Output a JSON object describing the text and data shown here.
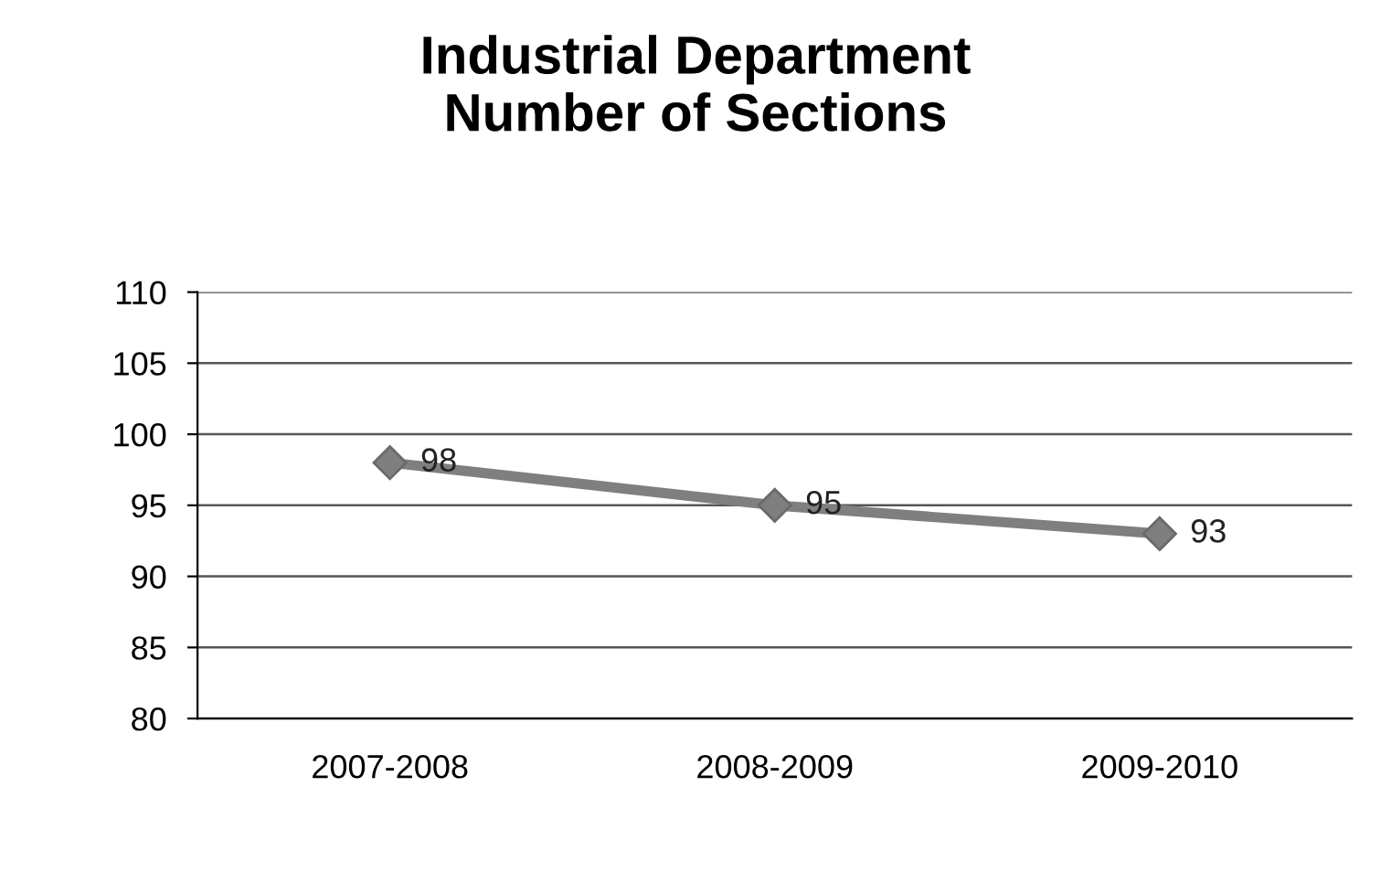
{
  "chart_data": {
    "type": "line",
    "title": "Industrial Department\nNumber of Sections",
    "categories": [
      "2007-2008",
      "2008-2009",
      "2009-2010"
    ],
    "series": [
      {
        "color": "#7f7f7f",
        "values": [
          98,
          95,
          93
        ]
      }
    ],
    "ylim": [
      80,
      110
    ],
    "yticks": [
      80,
      85,
      90,
      95,
      100,
      105,
      110
    ],
    "grid": "y",
    "marker": "diamond",
    "line_style": "solid",
    "data_labels": true
  }
}
